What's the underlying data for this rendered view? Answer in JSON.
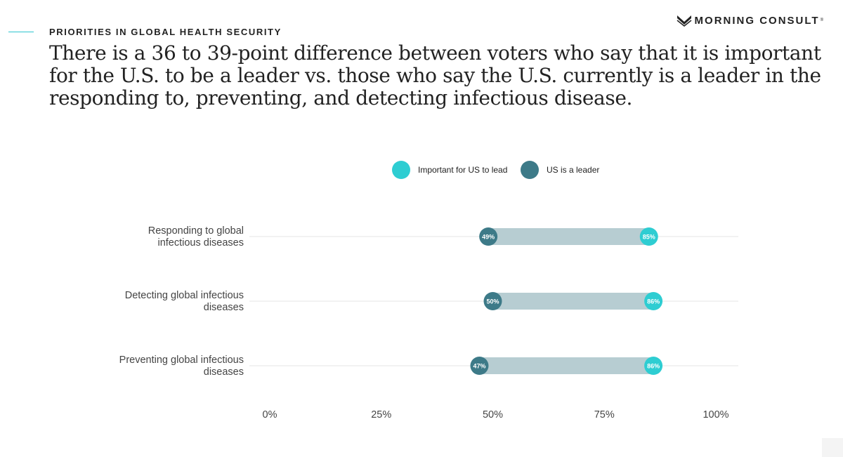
{
  "header": {
    "kicker": "PRIORITIES IN GLOBAL HEALTH SECURITY",
    "headline": "There is a 36 to 39-point difference between voters who say that it is important for the U.S. to be a leader vs. those who say the U.S. currently is a leader in the responding to, preventing, and detecting infectious disease.",
    "logo_text": "MORNING CONSULT",
    "logo_tm": "®",
    "logo_icon": "morning-consult-m-icon"
  },
  "colors": {
    "important": "#2ecdd2",
    "leader": "#3d7a88",
    "connector": "#b7cdd2",
    "gridline": "#e6e6e6",
    "accent": "#2ec5cf"
  },
  "chart_data": {
    "type": "dumbbell",
    "title": "",
    "xlim": [
      0,
      100
    ],
    "x_ticks": [
      0,
      25,
      50,
      75,
      100
    ],
    "x_tick_labels": [
      "0%",
      "25%",
      "50%",
      "75%",
      "100%"
    ],
    "legend_position": "top-center",
    "categories": [
      [
        "Responding to global",
        "infectious diseases"
      ],
      [
        "Detecting global infectious",
        "diseases"
      ],
      [
        "Preventing global infectious",
        "diseases"
      ]
    ],
    "series": [
      {
        "name": "Important for US to lead",
        "values": [
          85,
          86,
          86
        ],
        "labels": [
          "85%",
          "86%",
          "86%"
        ]
      },
      {
        "name": "US is a leader",
        "values": [
          49,
          50,
          47
        ],
        "labels": [
          "49%",
          "50%",
          "47%"
        ]
      }
    ]
  }
}
